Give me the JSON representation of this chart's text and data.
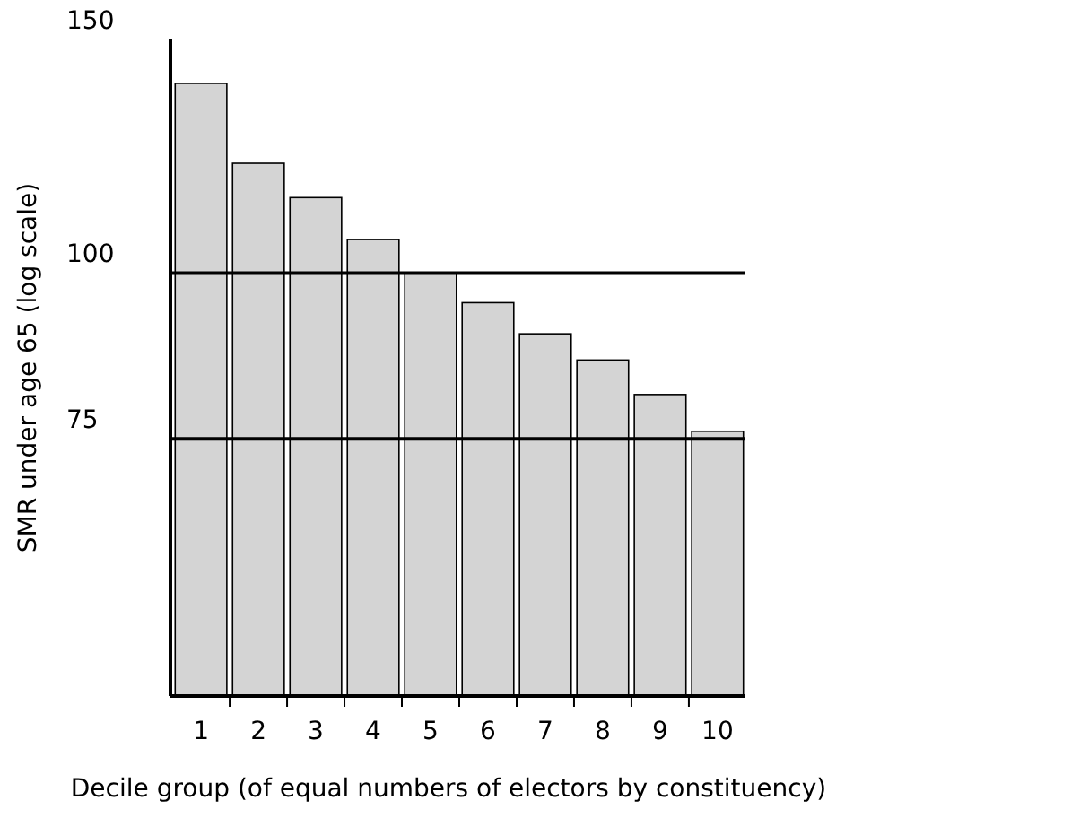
{
  "chart_data": {
    "type": "bar",
    "xlabel": "Decile group (of equal numbers of electors by constituency)",
    "ylabel": "SMR under age 65 (log scale)",
    "categories": [
      "1",
      "2",
      "3",
      "4",
      "5",
      "6",
      "7",
      "8",
      "9",
      "10"
    ],
    "values": [
      139,
      121,
      114,
      106,
      100,
      95,
      90,
      86,
      81,
      76
    ],
    "color": "#d4d4d4",
    "log": true,
    "ylim": [
      48,
      150
    ],
    "yticks": [
      75,
      100,
      150
    ],
    "ref_lines": [
      {
        "axis": "y",
        "value": 100,
        "color": "#000000"
      },
      {
        "axis": "y",
        "value": 75,
        "color": "#000000"
      }
    ],
    "grid": false
  }
}
